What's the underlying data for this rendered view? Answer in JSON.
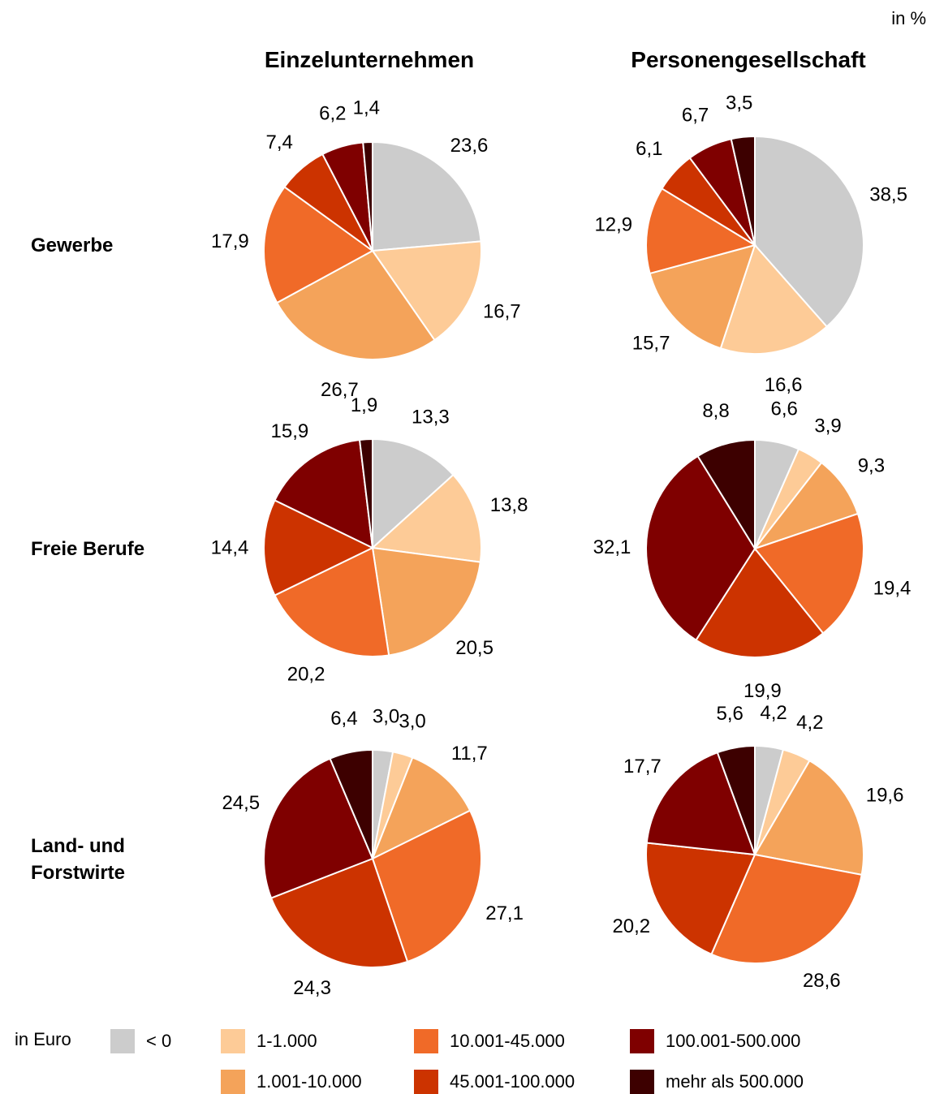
{
  "unit_label": "in %",
  "columns": [
    "Einzelunternehmen",
    "Personengesellschaft"
  ],
  "rows": [
    {
      "label_line1": "Gewerbe",
      "label_line2": ""
    },
    {
      "label_line1": "Freie Berufe",
      "label_line2": ""
    },
    {
      "label_line1": "Land- und",
      "label_line2": "Forstwirte"
    }
  ],
  "legend": {
    "title": "in Euro",
    "items": [
      {
        "label": "< 0",
        "color": "#cccccc"
      },
      {
        "label": "1-1.000",
        "color": "#fdcb97"
      },
      {
        "label": "1.001-10.000",
        "color": "#f4a35a"
      },
      {
        "label": "10.001-45.000",
        "color": "#f06a28"
      },
      {
        "label": "45.001-100.000",
        "color": "#cc3300"
      },
      {
        "label": "100.001-500.000",
        "color": "#7f0000"
      },
      {
        "label": "mehr als 500.000",
        "color": "#3d0000"
      }
    ]
  },
  "chart_data": [
    {
      "type": "pie",
      "row": "Gewerbe",
      "column": "Einzelunternehmen",
      "values": [
        23.6,
        16.7,
        26.7,
        17.9,
        7.4,
        6.2,
        1.4
      ],
      "labels": [
        "23,6",
        "16,7",
        "26,7",
        "17,9",
        "7,4",
        "6,2",
        "1,4"
      ]
    },
    {
      "type": "pie",
      "row": "Gewerbe",
      "column": "Personengesellschaft",
      "values": [
        38.5,
        16.6,
        15.7,
        12.9,
        6.1,
        6.7,
        3.5
      ],
      "labels": [
        "38,5",
        "16,6",
        "15,7",
        "12,9",
        "6,1",
        "6,7",
        "3,5"
      ]
    },
    {
      "type": "pie",
      "row": "Freie Berufe",
      "column": "Einzelunternehmen",
      "values": [
        13.3,
        13.8,
        20.5,
        20.2,
        14.4,
        15.9,
        1.9
      ],
      "labels": [
        "13,3",
        "13,8",
        "20,5",
        "20,2",
        "14,4",
        "15,9",
        "1,9"
      ]
    },
    {
      "type": "pie",
      "row": "Freie Berufe",
      "column": "Personengesellschaft",
      "values": [
        6.6,
        3.9,
        9.3,
        19.4,
        19.9,
        32.1,
        8.8
      ],
      "labels": [
        "6,6",
        "3,9",
        "9,3",
        "19,4",
        "19,9",
        "32,1",
        "8,8"
      ]
    },
    {
      "type": "pie",
      "row": "Land- und Forstwirte",
      "column": "Einzelunternehmen",
      "values": [
        3.0,
        3.0,
        11.7,
        27.1,
        24.3,
        24.5,
        6.4
      ],
      "labels": [
        "3,0",
        "3,0",
        "11,7",
        "27,1",
        "24,3",
        "24,5",
        "6,4"
      ]
    },
    {
      "type": "pie",
      "row": "Land- und Forstwirte",
      "column": "Personengesellschaft",
      "values": [
        4.2,
        4.2,
        19.6,
        28.6,
        20.2,
        17.7,
        5.6
      ],
      "labels": [
        "4,2",
        "4,2",
        "19,6",
        "28,6",
        "20,2",
        "17,7",
        "5,6"
      ]
    }
  ]
}
